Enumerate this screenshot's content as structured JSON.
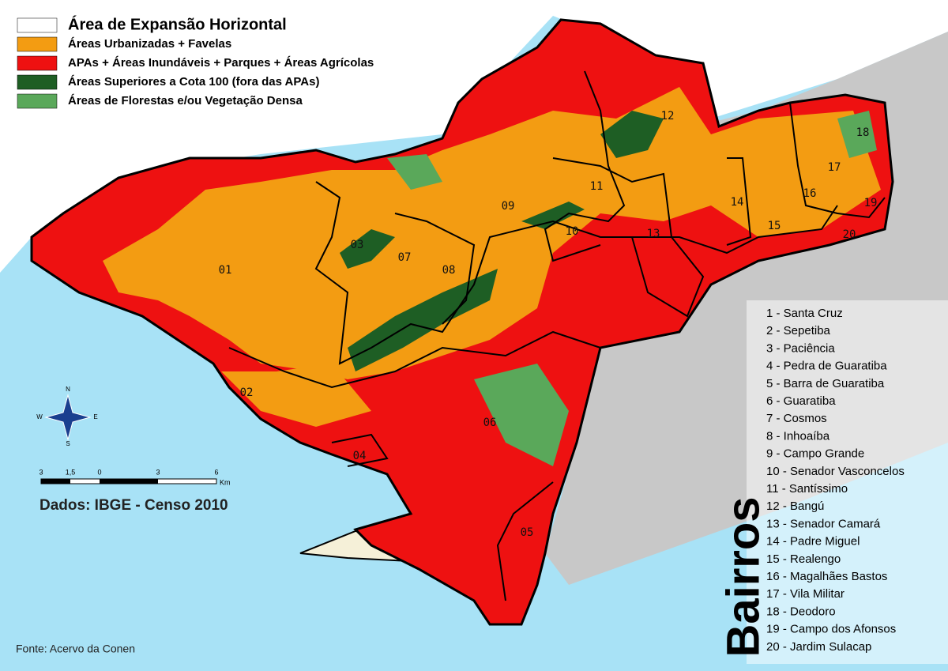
{
  "legend": [
    {
      "label": "Área de Expansão Horizontal",
      "color": "#ffffff"
    },
    {
      "label": "Áreas Urbanizadas + Favelas",
      "color": "#f39c12"
    },
    {
      "label": "APAs + Áreas Inundáveis + Parques + Áreas Agrícolas",
      "color": "#ee1111"
    },
    {
      "label": "Áreas Superiores a Cota 100 (fora das APAs)",
      "color": "#1e5e24"
    },
    {
      "label": "Áreas de Florestas e/ou Vegetação Densa",
      "color": "#5aa85a"
    }
  ],
  "map_labels": [
    "01",
    "02",
    "03",
    "04",
    "05",
    "06",
    "07",
    "08",
    "09",
    "10",
    "11",
    "12",
    "13",
    "14",
    "15",
    "16",
    "17",
    "18",
    "19",
    "20"
  ],
  "bairros_title": "Bairros",
  "bairros": [
    "1 - Santa Cruz",
    "2 - Sepetiba",
    "3 - Paciência",
    "4 - Pedra de Guaratiba",
    "5 - Barra de Guaratiba",
    "6 - Guaratiba",
    "7 - Cosmos",
    "8 - Inhoaíba",
    "9 - Campo Grande",
    "10 - Senador Vasconcelos",
    "11 - Santíssimo",
    "12 - Bangú",
    "13 - Senador Camará",
    "14 - Padre Miguel",
    "15 - Realengo",
    "16 - Magalhães Bastos",
    "17 - Vila Militar",
    "18 - Deodoro",
    "19 - Campo dos Afonsos",
    "20 - Jardim Sulacap"
  ],
  "scale": {
    "labels": [
      "3",
      "1,5",
      "0",
      "3",
      "6"
    ],
    "unit": "Km"
  },
  "compass": {
    "n": "N",
    "s": "S",
    "e": "E",
    "w": "W"
  },
  "data_source": "Dados: IBGE - Censo 2010",
  "credit": "Fonte: Acervo da Conen"
}
